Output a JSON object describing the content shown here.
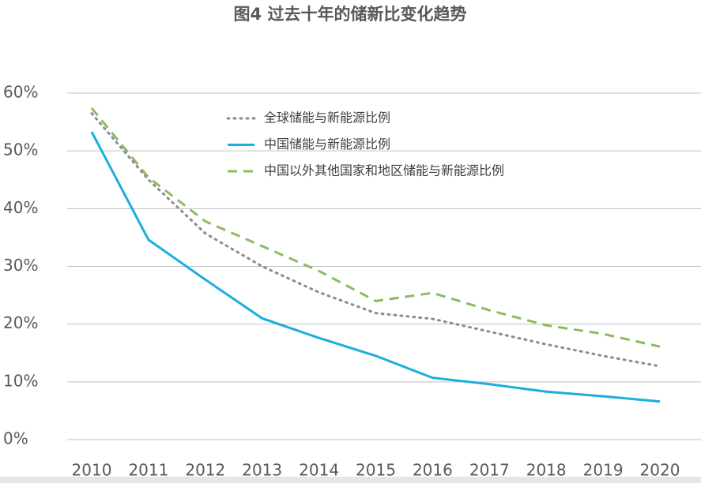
{
  "chart_data": {
    "type": "line",
    "title": "图4 过去十年的储新比变化趋势",
    "categories": [
      "2010",
      "2011",
      "2012",
      "2013",
      "2014",
      "2015",
      "2016",
      "2017",
      "2018",
      "2019",
      "2020"
    ],
    "series": [
      {
        "name": "全球储能与新能源比例",
        "color": "#8c8c8c",
        "style": "dotted",
        "values": [
          56.5,
          45,
          35.7,
          30,
          25.5,
          21.9,
          20.9,
          18.7,
          16.5,
          14.5,
          12.7
        ]
      },
      {
        "name": "中国储能与新能源比例",
        "color": "#1aaedf",
        "style": "solid",
        "values": [
          53.3,
          34.6,
          27.7,
          21,
          17.6,
          14.5,
          10.7,
          9.6,
          8.3,
          7.5,
          6.6
        ]
      },
      {
        "name": "中国以外其他国家和地区储能与新能源比例",
        "color": "#8dbb5e",
        "style": "dashed",
        "values": [
          57.4,
          45.4,
          37.8,
          33.5,
          29.2,
          24,
          25.4,
          22.4,
          19.8,
          18.3,
          16.1
        ]
      }
    ],
    "ylim": [
      0,
      60
    ],
    "yticks": [
      {
        "value": 0,
        "label": "0%"
      },
      {
        "value": 10,
        "label": "10%"
      },
      {
        "value": 20,
        "label": "20%"
      },
      {
        "value": 30,
        "label": "30%"
      },
      {
        "value": 40,
        "label": "40%"
      },
      {
        "value": 50,
        "label": "50%"
      },
      {
        "value": 60,
        "label": "60%"
      }
    ],
    "grid": true
  }
}
